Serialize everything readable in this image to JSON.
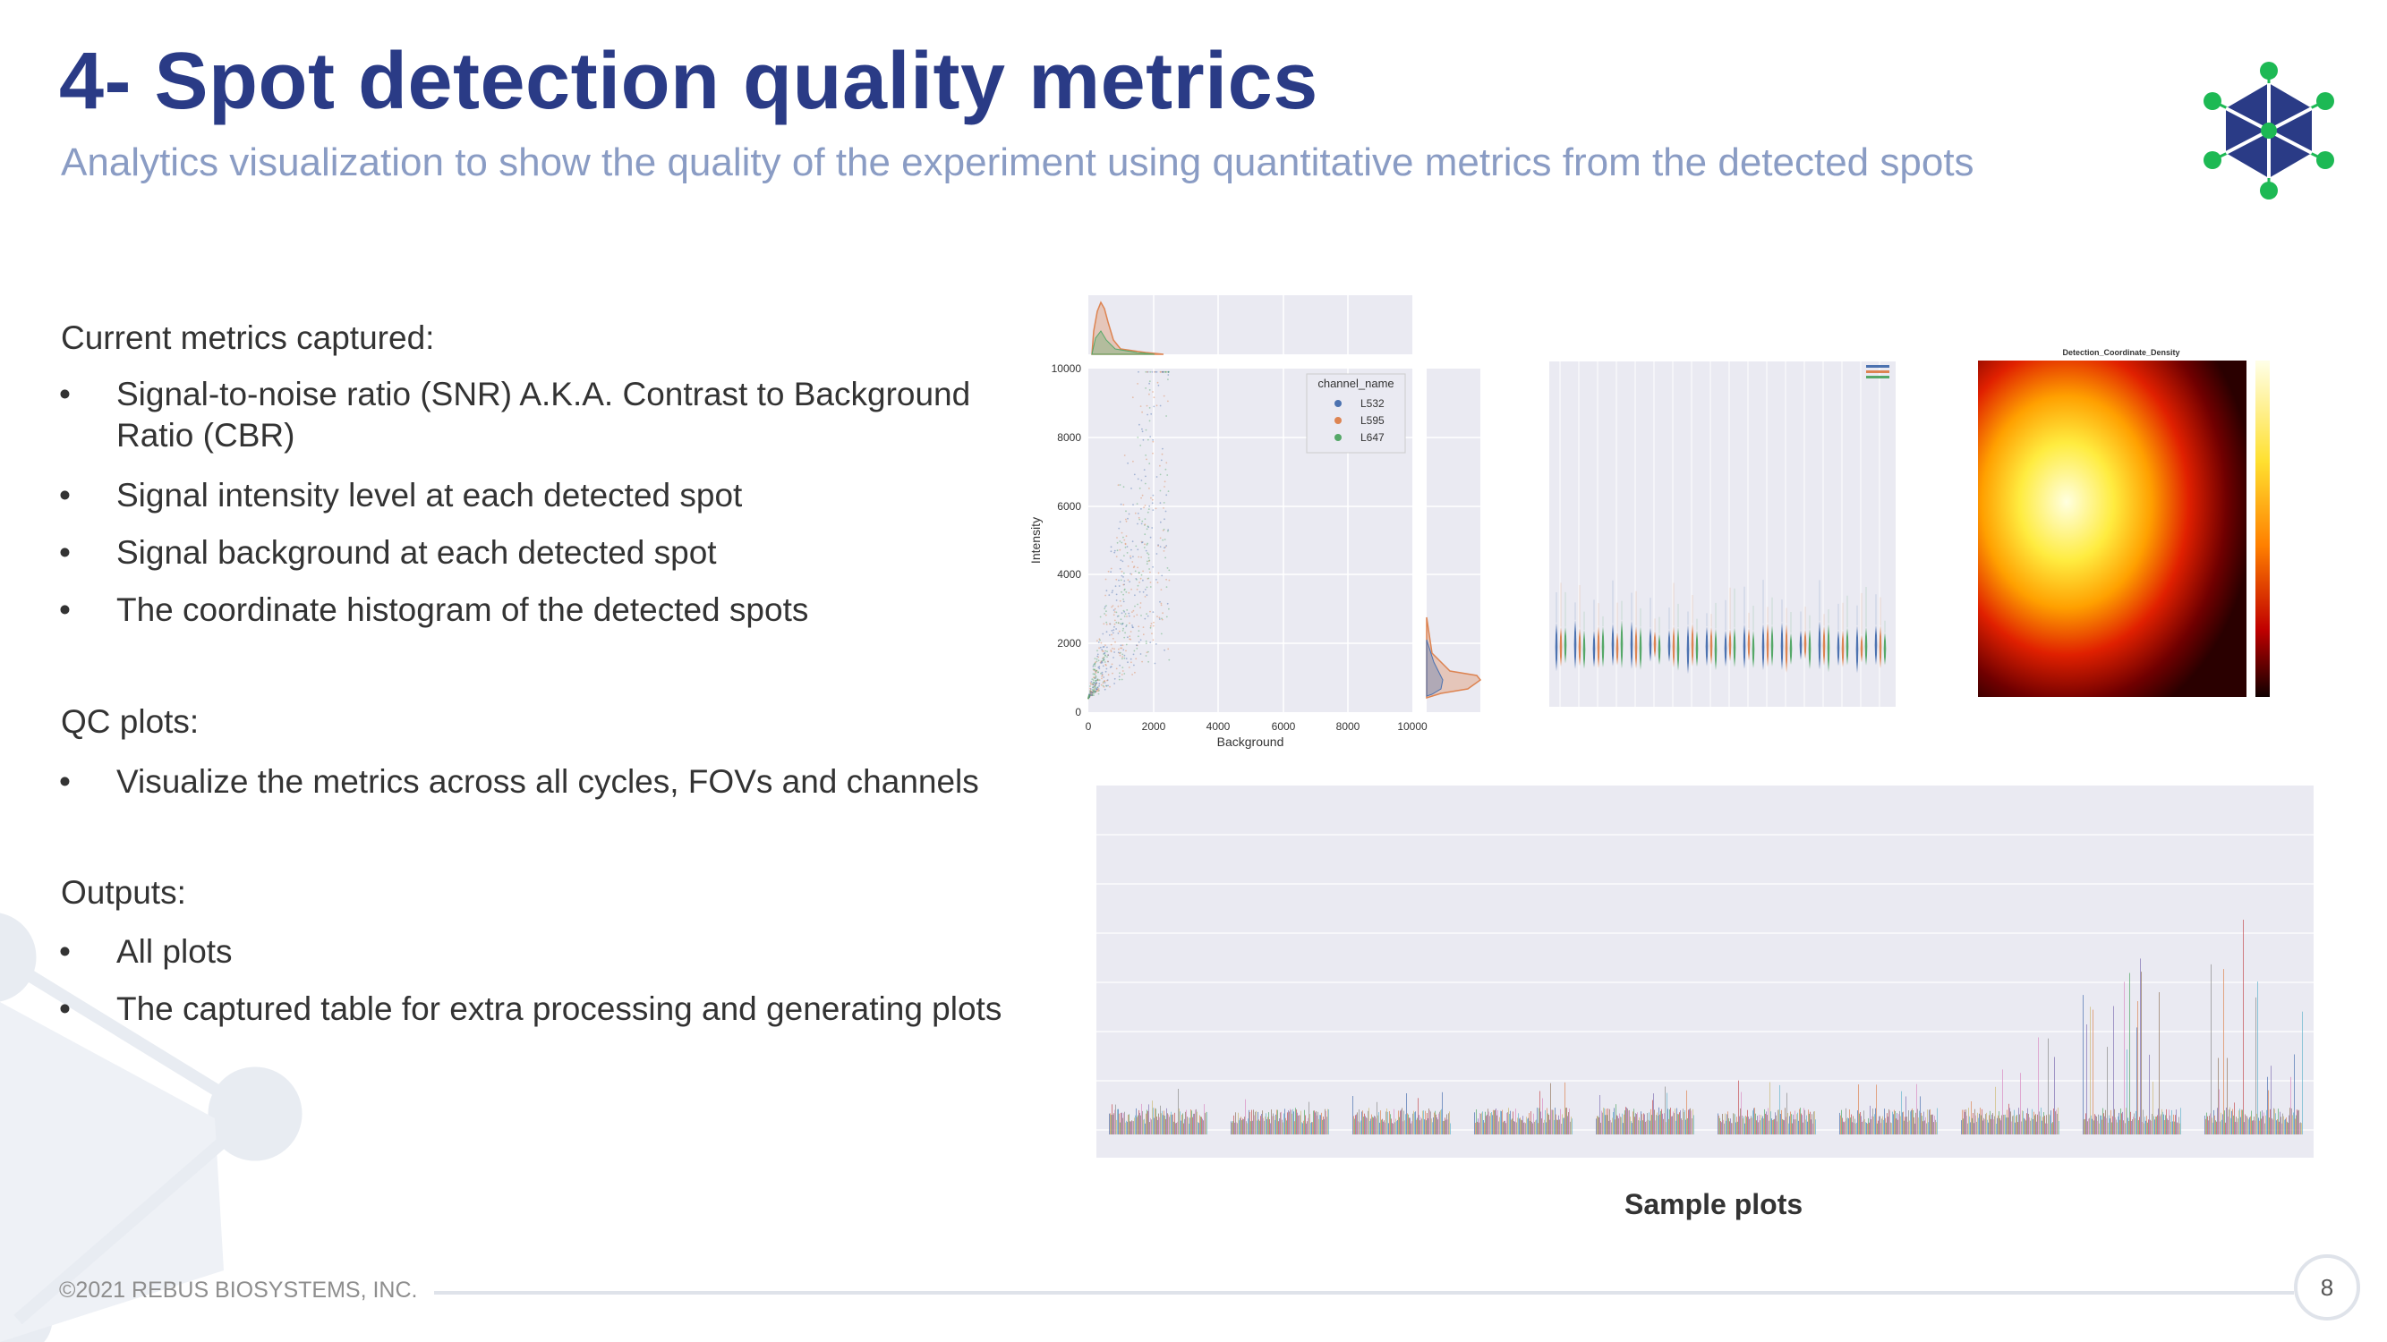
{
  "slide": {
    "title": "4- Spot detection quality metrics",
    "subtitle": "Analytics visualization to show the quality of the experiment using quantitative metrics from the detected spots",
    "page_number": "8",
    "footer": "©2021 REBUS BIOSYSTEMS, INC.",
    "sample_plots_label": "Sample plots",
    "colors": {
      "title": "#2a3b86",
      "subtitle": "#8a9cc4",
      "logo_blue": "#2a3b86",
      "logo_green": "#1db954"
    }
  },
  "sections": [
    {
      "heading": "Current metrics captured:",
      "bullets": [
        "Signal-to-noise ratio (SNR) A.K.A. Contrast to Background",
        "Ratio (CBR)",
        "Signal intensity level at each detected spot",
        "Signal background at each detected spot",
        "The coordinate histogram of the detected spots"
      ]
    },
    {
      "heading": "QC plots:",
      "bullets": [
        "Visualize the metrics across all cycles, FOVs and channels"
      ]
    },
    {
      "heading": "Outputs:",
      "bullets": [
        "All plots",
        "The captured table for extra processing and generating plots"
      ]
    }
  ],
  "bullet_glyph": "•",
  "chart_data": [
    {
      "type": "scatter",
      "title": "",
      "xlabel": "Background",
      "ylabel": "Intensity",
      "xlim": [
        0,
        10000
      ],
      "ylim": [
        0,
        10000
      ],
      "xticks": [
        "0",
        "2000",
        "4000",
        "6000",
        "8000",
        "10000"
      ],
      "yticks": [
        "0",
        "2000",
        "4000",
        "6000",
        "8000",
        "10000"
      ],
      "legend_title": "channel_name",
      "legend_position": "top-right",
      "series": [
        {
          "name": "L532",
          "color": "#4c72b0"
        },
        {
          "name": "L595",
          "color": "#dd8452"
        },
        {
          "name": "L647",
          "color": "#55a868"
        }
      ]
    },
    {
      "type": "violin",
      "title": "",
      "groups": 18,
      "series": [
        "L532",
        "L595",
        "L647"
      ]
    },
    {
      "type": "heatmap",
      "title": "Detection_Coordinate_Density"
    },
    {
      "type": "histogram",
      "title": "",
      "groups": 10
    }
  ]
}
